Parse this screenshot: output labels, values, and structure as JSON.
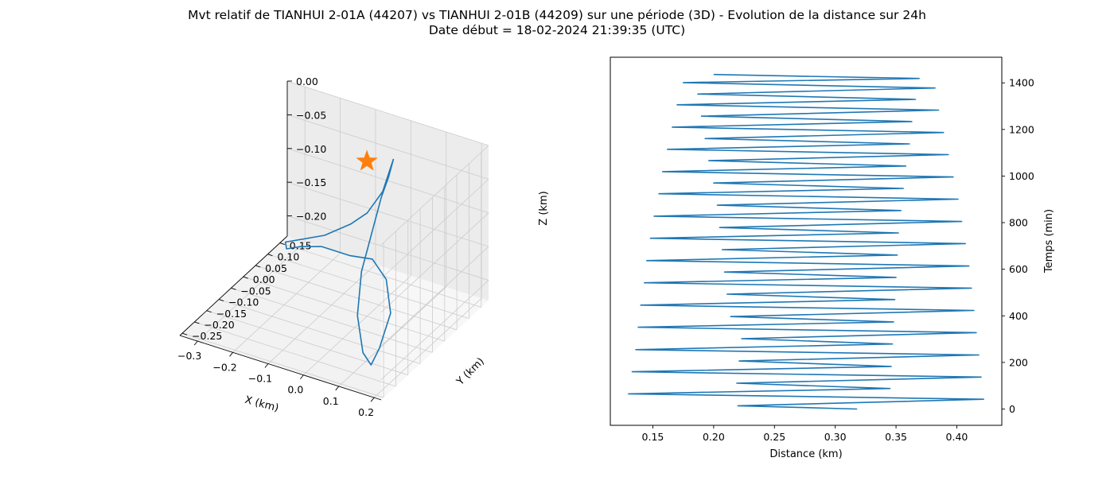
{
  "figure": {
    "title_line1": "Mvt relatif de TIANHUI 2-01A (44207) vs TIANHUI 2-01B (44209) sur une période (3D) - Evolution de la distance sur 24h",
    "title_line2": "Date début = 18-02-2024 21:39:35 (UTC)"
  },
  "colors": {
    "series": "#1f77b4",
    "marker": "#ff7f0e",
    "pane": "#f2f2f2",
    "grid": "#cccccc"
  },
  "chart_data": [
    {
      "type": "line",
      "projection": "3d",
      "xlabel": "X (km)",
      "ylabel": "Y (km)",
      "zlabel": "Z (km)",
      "x_ticks": [
        "−0.3",
        "−0.2",
        "−0.1",
        "0.0",
        "0.1",
        "0.2"
      ],
      "y_ticks": [
        "−0.25",
        "−0.20",
        "−0.15",
        "−0.10",
        "−0.05",
        "0.00",
        "0.05",
        "0.10",
        "0.15"
      ],
      "z_ticks": [
        "0.00",
        "−0.05",
        "−0.10",
        "−0.15",
        "−0.20"
      ],
      "xlim": [
        -0.35,
        0.22
      ],
      "ylim": [
        -0.26,
        0.18
      ],
      "zlim": [
        -0.23,
        0.0
      ],
      "grid": true,
      "marker": {
        "symbol": "star",
        "x": 0,
        "y": 0,
        "z": 0
      },
      "trajectory": [
        {
          "x": 0.02,
          "y": 0.08,
          "z": -0.02
        },
        {
          "x": 0.01,
          "y": 0.05,
          "z": -0.06
        },
        {
          "x": -0.02,
          "y": 0.03,
          "z": -0.09
        },
        {
          "x": -0.06,
          "y": 0.02,
          "z": -0.11
        },
        {
          "x": -0.12,
          "y": 0.0,
          "z": -0.13
        },
        {
          "x": -0.18,
          "y": -0.02,
          "z": -0.14
        },
        {
          "x": -0.21,
          "y": -0.03,
          "z": -0.145
        },
        {
          "x": -0.2,
          "y": -0.04,
          "z": -0.15
        },
        {
          "x": -0.16,
          "y": -0.04,
          "z": -0.14
        },
        {
          "x": -0.1,
          "y": -0.04,
          "z": -0.13
        },
        {
          "x": -0.02,
          "y": -0.04,
          "z": -0.13
        },
        {
          "x": 0.05,
          "y": -0.05,
          "z": -0.12
        },
        {
          "x": 0.11,
          "y": -0.08,
          "z": -0.13
        },
        {
          "x": 0.15,
          "y": -0.12,
          "z": -0.16
        },
        {
          "x": 0.16,
          "y": -0.18,
          "z": -0.19
        },
        {
          "x": 0.15,
          "y": -0.2,
          "z": -0.21
        },
        {
          "x": 0.12,
          "y": -0.19,
          "z": -0.2
        },
        {
          "x": 0.07,
          "y": -0.14,
          "z": -0.17
        },
        {
          "x": 0.04,
          "y": -0.08,
          "z": -0.13
        },
        {
          "x": 0.03,
          "y": -0.02,
          "z": -0.09
        },
        {
          "x": 0.02,
          "y": 0.03,
          "z": -0.06
        },
        {
          "x": 0.02,
          "y": 0.06,
          "z": -0.04
        },
        {
          "x": 0.02,
          "y": 0.08,
          "z": -0.02
        }
      ]
    },
    {
      "type": "line",
      "xlabel": "Distance (km)",
      "ylabel": "Temps (min)",
      "xlim": [
        0.115,
        0.437
      ],
      "ylim": [
        -70,
        1510
      ],
      "x_ticks": [
        "0.15",
        "0.20",
        "0.25",
        "0.30",
        "0.35",
        "0.40"
      ],
      "y_ticks": [
        "0",
        "200",
        "400",
        "600",
        "800",
        "1000",
        "1200",
        "1400"
      ],
      "y_axis_side": "right",
      "grid": false,
      "series": [
        {
          "points": [
            [
              0.318,
              0
            ],
            [
              0.22,
              14
            ],
            [
              0.422,
              42
            ],
            [
              0.13,
              65
            ],
            [
              0.345,
              88
            ],
            [
              0.219,
              111
            ],
            [
              0.42,
              137
            ],
            [
              0.133,
              160
            ],
            [
              0.346,
              183
            ],
            [
              0.221,
              206
            ],
            [
              0.418,
              232
            ],
            [
              0.136,
              255
            ],
            [
              0.347,
              279
            ],
            [
              0.223,
              302
            ],
            [
              0.416,
              328
            ],
            [
              0.138,
              351
            ],
            [
              0.348,
              374
            ],
            [
              0.214,
              397
            ],
            [
              0.414,
              423
            ],
            [
              0.14,
              446
            ],
            [
              0.349,
              470
            ],
            [
              0.211,
              493
            ],
            [
              0.412,
              519
            ],
            [
              0.143,
              542
            ],
            [
              0.35,
              565
            ],
            [
              0.209,
              588
            ],
            [
              0.41,
              614
            ],
            [
              0.145,
              637
            ],
            [
              0.351,
              661
            ],
            [
              0.207,
              684
            ],
            [
              0.407,
              710
            ],
            [
              0.148,
              733
            ],
            [
              0.352,
              756
            ],
            [
              0.205,
              779
            ],
            [
              0.404,
              805
            ],
            [
              0.151,
              828
            ],
            [
              0.354,
              852
            ],
            [
              0.203,
              875
            ],
            [
              0.401,
              901
            ],
            [
              0.155,
              924
            ],
            [
              0.356,
              947
            ],
            [
              0.2,
              970
            ],
            [
              0.397,
              996
            ],
            [
              0.158,
              1019
            ],
            [
              0.358,
              1043
            ],
            [
              0.196,
              1066
            ],
            [
              0.393,
              1092
            ],
            [
              0.162,
              1115
            ],
            [
              0.361,
              1138
            ],
            [
              0.193,
              1161
            ],
            [
              0.389,
              1187
            ],
            [
              0.166,
              1210
            ],
            [
              0.363,
              1234
            ],
            [
              0.19,
              1257
            ],
            [
              0.385,
              1283
            ],
            [
              0.17,
              1306
            ],
            [
              0.366,
              1329
            ],
            [
              0.187,
              1352
            ],
            [
              0.382,
              1378
            ],
            [
              0.175,
              1401
            ],
            [
              0.369,
              1419
            ],
            [
              0.2,
              1436
            ]
          ]
        }
      ]
    }
  ]
}
